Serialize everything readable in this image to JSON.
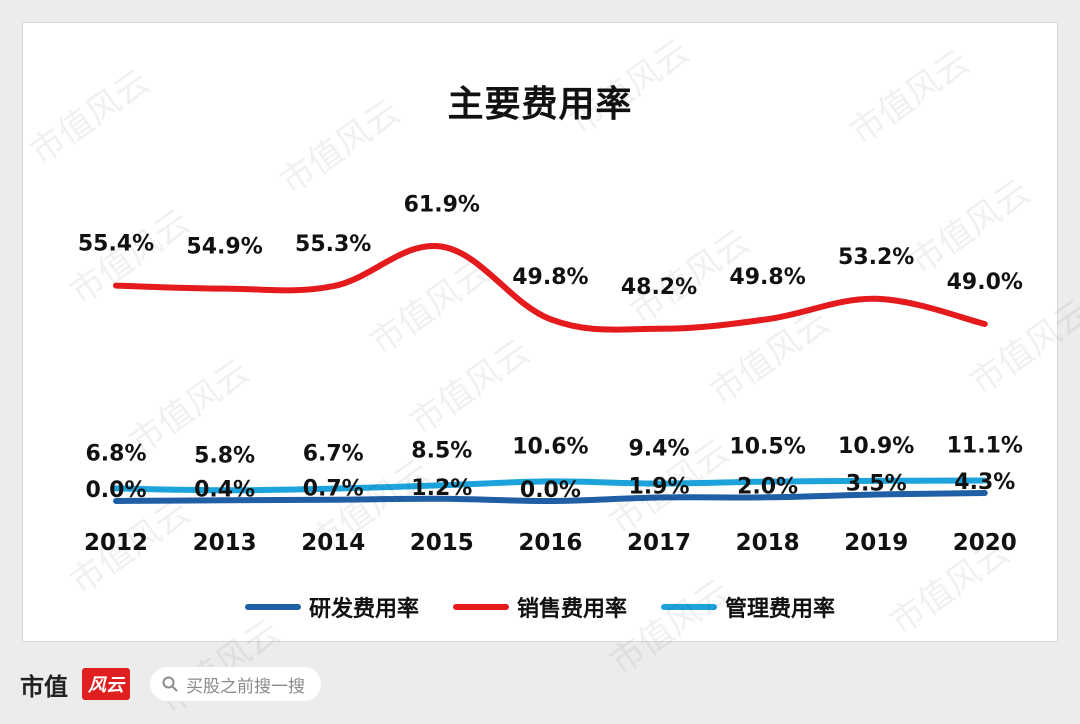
{
  "chart_data": {
    "type": "line",
    "title": "主要费用率",
    "categories": [
      "2012",
      "2013",
      "2014",
      "2015",
      "2016",
      "2017",
      "2018",
      "2019",
      "2020"
    ],
    "ylim": [
      0,
      70
    ],
    "series": [
      {
        "name": "研发费用率",
        "color": "#1f5fa6",
        "values": [
          0.0,
          0.4,
          0.7,
          1.2,
          0.0,
          1.9,
          2.0,
          3.5,
          4.3
        ],
        "labels": [
          "0.0%",
          "0.4%",
          "0.7%",
          "1.2%",
          "0.0%",
          "1.9%",
          "2.0%",
          "3.5%",
          "4.3%"
        ]
      },
      {
        "name": "销售费用率",
        "color": "#e41a1c",
        "values": [
          55.4,
          54.9,
          55.3,
          61.9,
          49.8,
          48.2,
          49.8,
          53.2,
          49.0
        ],
        "labels": [
          "55.4%",
          "54.9%",
          "55.3%",
          "61.9%",
          "49.8%",
          "48.2%",
          "49.8%",
          "53.2%",
          "49.0%"
        ]
      },
      {
        "name": "管理费用率",
        "color": "#1ca3dc",
        "values": [
          6.8,
          5.8,
          6.7,
          8.5,
          10.6,
          9.4,
          10.5,
          10.9,
          11.1
        ],
        "labels": [
          "6.8%",
          "5.8%",
          "6.7%",
          "8.5%",
          "10.6%",
          "9.4%",
          "10.5%",
          "10.9%",
          "11.1%"
        ]
      }
    ],
    "grid": false,
    "legend_position": "bottom"
  },
  "watermark_text": "市值风云",
  "footer": {
    "brand": "市值",
    "brand_logo": "风云",
    "search_placeholder": "买股之前搜一搜"
  }
}
